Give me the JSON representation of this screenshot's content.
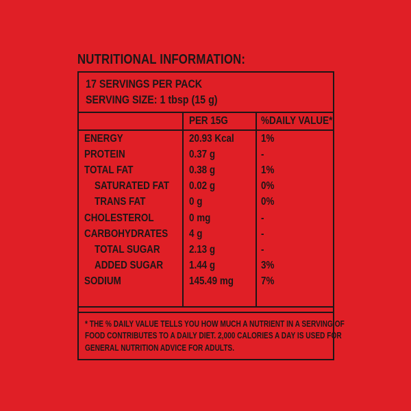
{
  "meta": {
    "background_color": "#E01F26",
    "ink_color": "#1D1617"
  },
  "title": "NUTRITIONAL INFORMATION:",
  "serving_info": {
    "servings_per_pack": "17 SERVINGS PER PACK",
    "serving_size": "SERVING SIZE: 1 tbsp (15 g)"
  },
  "table": {
    "headers": {
      "nutrient": "",
      "per_15g": "PER 15G",
      "daily_value": "%DAILY VALUE*"
    },
    "rows": [
      {
        "label": "ENERGY",
        "indent": false,
        "per_15g": "20.93 Kcal",
        "daily_value": "1%"
      },
      {
        "label": "PROTEIN",
        "indent": false,
        "per_15g": "0.37 g",
        "daily_value": "-"
      },
      {
        "label": "TOTAL FAT",
        "indent": false,
        "per_15g": "0.38 g",
        "daily_value": "1%"
      },
      {
        "label": "SATURATED FAT",
        "indent": true,
        "per_15g": "0.02 g",
        "daily_value": "0%"
      },
      {
        "label": "TRANS FAT",
        "indent": true,
        "per_15g": "0 g",
        "daily_value": "0%"
      },
      {
        "label": "CHOLESTEROL",
        "indent": false,
        "per_15g": "0 mg",
        "daily_value": "-"
      },
      {
        "label": "CARBOHYDRATES",
        "indent": false,
        "per_15g": "4 g",
        "daily_value": "-"
      },
      {
        "label": "TOTAL SUGAR",
        "indent": true,
        "per_15g": "2.13 g",
        "daily_value": "-"
      },
      {
        "label": "ADDED SUGAR",
        "indent": true,
        "per_15g": "1.44 g",
        "daily_value": "3%"
      },
      {
        "label": "SODIUM",
        "indent": false,
        "per_15g": "145.49 mg",
        "daily_value": "7%"
      }
    ]
  },
  "footnote": {
    "lines": [
      "* THE % DAILY VALUE TELLS YOU HOW MUCH A NUTRIENT IN A SERVING OF",
      "FOOD CONTRIBUTES TO A DAILY DIET. 2,000 CALORIES A DAY IS USED FOR",
      "GENERAL NUTRITION ADVICE FOR ADULTS."
    ]
  }
}
